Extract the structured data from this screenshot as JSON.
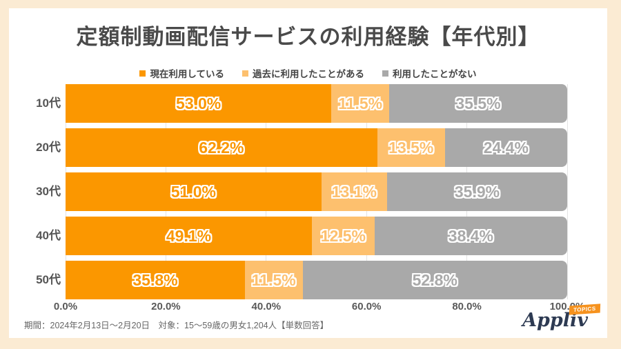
{
  "title": "定額制動画配信サービスの利用経験【年代別】",
  "colors": {
    "background": "#FBEBD3",
    "card": "#FFFFFF",
    "current_use": "#FB9700",
    "past_use": "#FDC06E",
    "never_use": "#A9A9A9",
    "title_text": "#4A4A4A",
    "axis_text": "#595959",
    "grid_line": "#E3E3E3",
    "logo_navy": "#2D3A52",
    "logo_badge_orange": "#F6921E"
  },
  "chart_data": {
    "type": "bar",
    "orientation": "horizontal-stacked",
    "title": "定額制動画配信サービスの利用経験【年代別】",
    "categories": [
      "10代",
      "20代",
      "30代",
      "40代",
      "50代"
    ],
    "series": [
      {
        "name": "現在利用している",
        "color": "#FB9700",
        "values": [
          53.0,
          62.2,
          51.0,
          49.1,
          35.8
        ]
      },
      {
        "name": "過去に利用したことがある",
        "color": "#FDC06E",
        "values": [
          11.5,
          13.5,
          13.1,
          12.5,
          11.5
        ]
      },
      {
        "name": "利用したことがない",
        "color": "#A9A9A9",
        "values": [
          35.5,
          24.4,
          35.9,
          38.4,
          52.8
        ]
      }
    ],
    "value_format": "percent",
    "xlim": [
      0,
      100
    ],
    "x_ticks": [
      "0.0%",
      "20.0%",
      "40.0%",
      "60.0%",
      "80.0%",
      "100.0%"
    ],
    "grid": true,
    "legend_position": "top"
  },
  "footer": {
    "note": "期間：2024年2月13日～2月20日　対象：15～59歳の男女1,204人【単数回答】",
    "logo_text": "Appliv",
    "logo_badge": "TOPICS"
  }
}
